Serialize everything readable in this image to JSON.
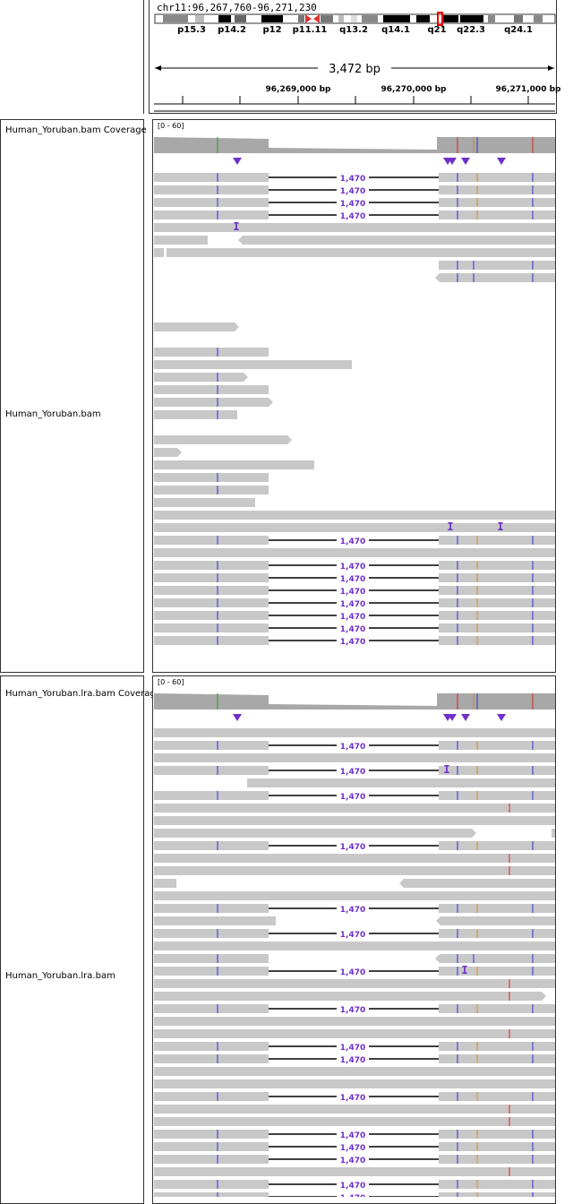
{
  "locus": "chr11:96,267,760-96,271,230",
  "ideogram": {
    "band_labels": [
      "p15.3",
      "p14.2",
      "p12",
      "p11.11",
      "q13.2",
      "q14.1",
      "q21",
      "q22.3",
      "q24.1"
    ]
  },
  "ruler": {
    "span_label": "3,472 bp",
    "tick_labels": [
      "96,269,000 bp",
      "96,270,000 bp",
      "96,271,000 bp"
    ]
  },
  "tracks": [
    {
      "coverage_name": "Human_Yoruban.bam Coverage",
      "coverage_range": "[0 - 60]",
      "alignment_name": "Human_Yoruban.bam"
    },
    {
      "coverage_name": "Human_Yoruban.lra.bam Coverage",
      "coverage_range": "[0 - 60]",
      "alignment_name": "Human_Yoruban.lra.bam"
    }
  ],
  "gap_label": "1,470",
  "colors": {
    "read": "#c8c8c8",
    "coverage": "#a8a8a8",
    "insertion": "#7030c8",
    "mismatch_blue": "#2a30e0",
    "mismatch_orange": "#d88a20",
    "mismatch_red": "#e02020",
    "centromere": "#e03030"
  }
}
